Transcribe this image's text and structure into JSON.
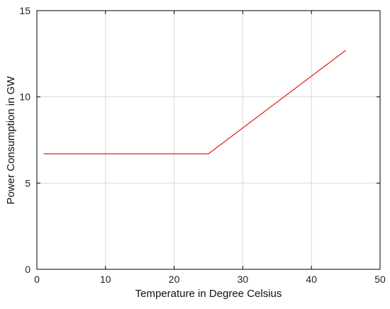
{
  "chart_data": {
    "type": "line",
    "title": "",
    "xlabel": "Temperature in Degree Celsius",
    "ylabel": "Power Consumption in GW",
    "xlim": [
      0,
      50
    ],
    "ylim": [
      0,
      15
    ],
    "xticks": [
      0,
      10,
      20,
      30,
      40,
      50
    ],
    "yticks": [
      0,
      5,
      10,
      15
    ],
    "grid": true,
    "legend": "none",
    "series": [
      {
        "color": "#e41a1c",
        "x": [
          1,
          25,
          45
        ],
        "y": [
          6.7,
          6.7,
          12.7
        ]
      }
    ]
  }
}
